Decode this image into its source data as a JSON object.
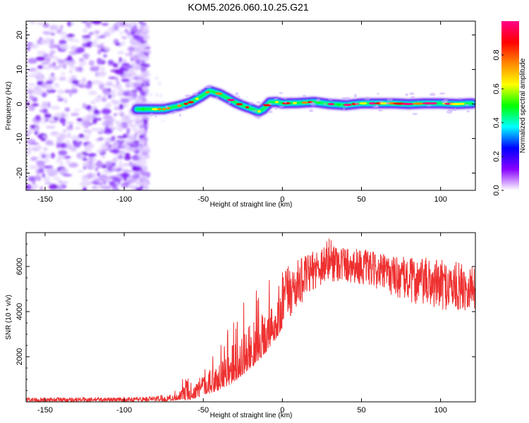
{
  "title": "KOM5.2026.060.10.25.G21",
  "chart_data": [
    {
      "type": "heatmap",
      "name": "spectrogram",
      "xlabel": "Height of straight line (km)",
      "ylabel": "Frequency (Hz)",
      "xlim": [
        -162,
        122
      ],
      "ylim": [
        -25,
        24
      ],
      "x_ticks": [
        -150,
        -100,
        -50,
        0,
        50,
        100
      ],
      "y_ticks": [
        -20,
        -10,
        0,
        10,
        20
      ],
      "x_tick_labels": [
        "-150",
        "-100",
        "-50",
        "0",
        "50",
        "100"
      ],
      "y_tick_labels": [
        "-20",
        "-10",
        "0",
        "10",
        "20"
      ],
      "noise_region_x": [
        -162,
        -86
      ],
      "ridge": {
        "x": [
          -92,
          -85,
          -75,
          -65,
          -58,
          -52,
          -46,
          -40,
          -35,
          -30,
          -25,
          -20,
          -15,
          -12,
          -8,
          -4,
          0,
          10,
          20,
          30,
          40,
          50,
          60,
          70,
          80,
          90,
          100,
          110,
          120
        ],
        "y": [
          -1.5,
          -1.5,
          -1.5,
          -0.5,
          0.5,
          2.0,
          3.8,
          3.0,
          1.8,
          0.5,
          -0.5,
          -1.3,
          -2.2,
          -1.5,
          0.5,
          0.6,
          0.2,
          0.3,
          0.6,
          0.0,
          -0.3,
          0.2,
          0.2,
          0.2,
          0.0,
          0.2,
          0.2,
          0.0,
          0.2
        ]
      },
      "colorbar": {
        "label": "Normalized spectral amplitude",
        "range": [
          0,
          1
        ],
        "ticks": [
          0.0,
          0.2,
          0.4,
          0.6,
          0.8
        ],
        "tick_labels": [
          "0.0",
          "0.2",
          "0.4",
          "0.6",
          "0.8"
        ],
        "colors": [
          "#ffffff",
          "#8800ff",
          "#0000ff",
          "#00ffff",
          "#00ff00",
          "#ffff00",
          "#ff8800",
          "#ff0000",
          "#ff0088"
        ]
      }
    },
    {
      "type": "line",
      "name": "snr",
      "xlabel": "Height of straight line (km)",
      "ylabel": "SNR (10 * v/v)",
      "xlim": [
        -162,
        122
      ],
      "ylim": [
        0,
        7500
      ],
      "x_ticks": [
        -150,
        -100,
        -50,
        0,
        50,
        100
      ],
      "y_ticks": [
        2000,
        4000,
        6000
      ],
      "x_tick_labels": [
        "-150",
        "-100",
        "-50",
        "0",
        "50",
        "100"
      ],
      "y_tick_labels": [
        "2000",
        "4000",
        "6000"
      ],
      "color": "#ee3030",
      "envelope": {
        "x": [
          -162,
          -100,
          -80,
          -70,
          -65,
          -60,
          -55,
          -50,
          -45,
          -40,
          -35,
          -30,
          -25,
          -20,
          -15,
          -10,
          -5,
          0,
          10,
          20,
          30,
          40,
          50,
          60,
          70,
          80,
          90,
          100,
          110,
          122
        ],
        "min": [
          0,
          0,
          0,
          50,
          100,
          80,
          150,
          300,
          400,
          500,
          700,
          900,
          1200,
          1500,
          1800,
          2200,
          2700,
          3200,
          4200,
          5000,
          5300,
          5300,
          5200,
          5000,
          4700,
          4400,
          4200,
          4100,
          4000,
          4100
        ],
        "max": [
          200,
          200,
          250,
          500,
          700,
          1900,
          1300,
          1700,
          2200,
          2800,
          3400,
          3900,
          4400,
          4800,
          5100,
          5500,
          5700,
          5900,
          6300,
          6700,
          7300,
          6900,
          6800,
          6600,
          6500,
          6400,
          6400,
          6300,
          6200,
          6100
        ]
      }
    }
  ]
}
